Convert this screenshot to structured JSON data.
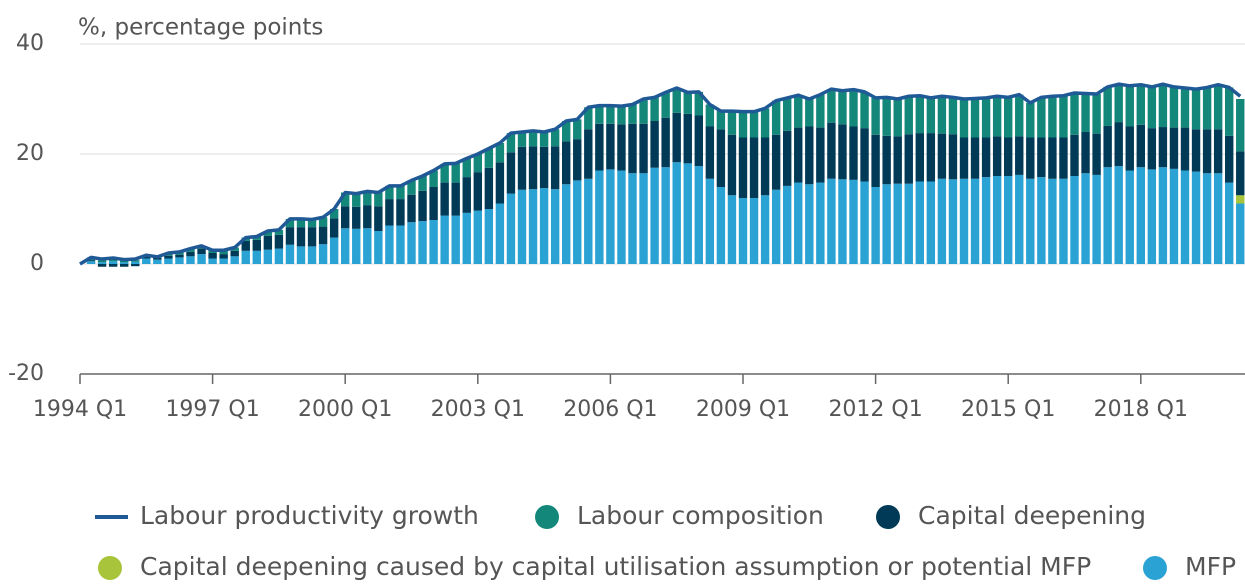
{
  "chart_data": {
    "type": "bar",
    "y_axis_label": "%, percentage points",
    "ylim": [
      -20,
      40
    ],
    "yticks": [
      -20,
      0,
      20,
      40
    ],
    "grid": true,
    "stacked": true,
    "categories": [
      "1994 Q1",
      null,
      null,
      null,
      null,
      null,
      null,
      null,
      null,
      null,
      null,
      null,
      "1997 Q1",
      null,
      null,
      null,
      null,
      null,
      null,
      null,
      null,
      null,
      null,
      null,
      "2000 Q1",
      null,
      null,
      null,
      null,
      null,
      null,
      null,
      null,
      null,
      null,
      null,
      "2003 Q1",
      null,
      null,
      null,
      null,
      null,
      null,
      null,
      null,
      null,
      null,
      null,
      "2006 Q1",
      null,
      null,
      null,
      null,
      null,
      null,
      null,
      null,
      null,
      null,
      null,
      "2009 Q1",
      null,
      null,
      null,
      null,
      null,
      null,
      null,
      null,
      null,
      null,
      null,
      "2012 Q1",
      null,
      null,
      null,
      null,
      null,
      null,
      null,
      null,
      null,
      null,
      null,
      "2015 Q1",
      null,
      null,
      null,
      null,
      null,
      null,
      null,
      null,
      null,
      null,
      null,
      "2018 Q1",
      null,
      null,
      null,
      null,
      null,
      null,
      null,
      null,
      null
    ],
    "series": [
      {
        "name": "Labour productivity growth",
        "type": "line",
        "color": "#1f5a96",
        "values": [
          0,
          1.2,
          0.9,
          1.1,
          0.8,
          0.9,
          1.6,
          1.3,
          2.0,
          2.2,
          2.8,
          3.3,
          2.5,
          2.5,
          3.0,
          4.8,
          5.0,
          6.0,
          6.2,
          8.2,
          8.2,
          8.1,
          8.5,
          10.0,
          13.0,
          12.8,
          13.2,
          13.0,
          14.2,
          14.2,
          15.2,
          16.0,
          17.0,
          18.2,
          18.3,
          19.2,
          20.0,
          21.0,
          22.0,
          23.8,
          24.0,
          24.2,
          24.0,
          24.5,
          26.0,
          26.3,
          28.5,
          28.8,
          28.8,
          28.7,
          29.0,
          30.0,
          30.3,
          31.2,
          32.0,
          31.2,
          31.3,
          29.0,
          27.8,
          27.8,
          27.7,
          27.7,
          28.3,
          29.7,
          30.2,
          30.7,
          30.0,
          30.8,
          31.8,
          31.5,
          31.7,
          31.3,
          30.2,
          30.3,
          30.0,
          30.5,
          30.6,
          30.2,
          30.5,
          30.3,
          30.0,
          30.1,
          30.2,
          30.5,
          30.3,
          30.8,
          29.3,
          30.3,
          30.5,
          30.6,
          31.1,
          31.0,
          30.9,
          32.2,
          32.7,
          32.4,
          32.6,
          32.2,
          32.7,
          32.2,
          32.0,
          31.8,
          32.1,
          32.6,
          32.1,
          30.5
        ]
      },
      {
        "name": "Labour composition",
        "type": "bar",
        "color": "#13877a",
        "values": [
          0,
          0.5,
          0.4,
          0.4,
          0.3,
          0.3,
          0.3,
          0.2,
          0.5,
          0.5,
          0.6,
          0.5,
          0.5,
          0.7,
          0.6,
          0.6,
          0.6,
          0.9,
          0.9,
          1.5,
          1.5,
          1.4,
          1.7,
          1.7,
          2.5,
          2.4,
          2.5,
          2.5,
          2.4,
          2.4,
          2.6,
          2.7,
          3.0,
          3.4,
          3.5,
          3.4,
          3.3,
          3.5,
          3.5,
          3.5,
          2.7,
          2.8,
          2.7,
          3.1,
          3.7,
          3.6,
          4.0,
          3.3,
          3.3,
          3.3,
          3.5,
          4.5,
          4.3,
          4.6,
          4.5,
          3.9,
          4.3,
          4.0,
          3.3,
          4.3,
          4.7,
          4.7,
          5.3,
          6.2,
          6.0,
          5.9,
          5.0,
          6.0,
          6.1,
          6.1,
          6.7,
          6.6,
          6.7,
          7.0,
          6.8,
          6.9,
          6.8,
          6.4,
          6.8,
          6.7,
          7.0,
          7.1,
          7.2,
          7.3,
          7.3,
          7.6,
          6.3,
          7.3,
          7.5,
          7.6,
          7.6,
          7.0,
          7.2,
          7.1,
          6.9,
          7.4,
          7.3,
          7.5,
          7.8,
          7.4,
          7.2,
          7.3,
          7.6,
          8.1,
          8.8,
          9.5
        ]
      },
      {
        "name": "Capital deepening",
        "type": "bar",
        "color": "#003a57",
        "values": [
          0,
          0.2,
          -0.5,
          -0.5,
          -0.5,
          -0.4,
          0.3,
          0.3,
          0.5,
          0.5,
          0.8,
          1.0,
          1.0,
          0.8,
          1.0,
          1.8,
          2.0,
          2.5,
          2.5,
          3.2,
          3.5,
          3.5,
          3.2,
          3.5,
          4.0,
          4.0,
          4.2,
          4.5,
          4.8,
          4.8,
          5.0,
          5.5,
          6.0,
          6.0,
          6.0,
          6.5,
          7.0,
          7.5,
          7.5,
          7.5,
          7.8,
          7.8,
          7.5,
          7.8,
          7.8,
          7.5,
          9.0,
          8.5,
          8.3,
          8.4,
          9.0,
          9.0,
          8.5,
          9.0,
          9.0,
          9.0,
          9.2,
          9.5,
          10.5,
          11.0,
          11.0,
          11.0,
          10.5,
          10.0,
          10.0,
          10.0,
          10.5,
          10.0,
          10.2,
          10.0,
          9.7,
          9.7,
          9.5,
          8.8,
          8.6,
          9.0,
          8.8,
          8.8,
          8.2,
          8.2,
          7.5,
          7.5,
          7.2,
          7.2,
          7.0,
          7.0,
          7.5,
          7.2,
          7.5,
          7.5,
          7.5,
          7.5,
          7.5,
          7.5,
          8.0,
          8.0,
          7.7,
          7.5,
          7.3,
          7.5,
          7.8,
          7.7,
          8.0,
          8.0,
          8.5,
          8.0
        ]
      },
      {
        "name": "Capital deepening caused by capital utilisation assumption or potential MFP",
        "type": "bar",
        "color": "#a8c43a",
        "values": [
          0,
          0,
          0,
          0,
          0,
          0,
          0,
          0,
          0,
          0,
          0,
          0,
          0,
          0,
          0,
          0,
          0,
          0,
          0,
          0,
          0,
          0,
          0,
          0,
          0,
          0,
          0,
          0,
          0,
          0,
          0,
          0,
          0,
          0,
          0,
          0,
          0,
          0,
          0,
          0,
          0,
          0,
          0,
          0,
          0,
          0,
          0,
          0,
          0,
          0,
          0,
          0,
          0,
          0,
          0,
          0,
          0,
          0,
          0,
          0,
          0,
          0,
          0,
          0,
          0,
          0,
          0,
          0,
          0,
          0,
          0,
          0,
          0,
          0,
          0,
          0,
          0,
          0,
          0,
          0,
          0,
          0,
          0,
          0,
          0,
          0,
          0,
          0,
          0,
          0,
          0,
          0,
          0,
          0,
          0,
          0,
          0,
          0,
          0,
          0,
          0,
          0,
          0,
          0,
          0,
          1.5
        ]
      },
      {
        "name": "MFP",
        "type": "bar",
        "color": "#2aa3d4",
        "values": [
          0,
          0.5,
          0.3,
          0.5,
          0.3,
          0.4,
          1.0,
          0.8,
          1.0,
          1.2,
          1.4,
          1.8,
          1.0,
          1.0,
          1.4,
          2.4,
          2.4,
          2.6,
          2.8,
          3.5,
          3.2,
          3.2,
          3.6,
          4.8,
          6.5,
          6.4,
          6.5,
          6.0,
          7.0,
          7.0,
          7.6,
          7.8,
          8.0,
          8.8,
          8.8,
          9.3,
          9.7,
          10.0,
          11.0,
          12.8,
          13.5,
          13.6,
          13.8,
          13.6,
          14.5,
          15.2,
          15.5,
          17.0,
          17.2,
          17.0,
          16.5,
          16.5,
          17.5,
          17.6,
          18.5,
          18.3,
          17.8,
          15.5,
          14.0,
          12.5,
          12.0,
          12.0,
          12.5,
          13.5,
          14.2,
          14.8,
          14.5,
          14.8,
          15.5,
          15.4,
          15.3,
          15.0,
          14.0,
          14.5,
          14.6,
          14.6,
          15.0,
          15.0,
          15.5,
          15.4,
          15.5,
          15.5,
          15.8,
          16.0,
          16.0,
          16.2,
          15.5,
          15.8,
          15.5,
          15.5,
          16.0,
          16.5,
          16.2,
          17.6,
          17.8,
          17.0,
          17.6,
          17.2,
          17.6,
          17.3,
          17.0,
          16.8,
          16.5,
          16.5,
          14.8,
          11.0
        ]
      }
    ]
  }
}
